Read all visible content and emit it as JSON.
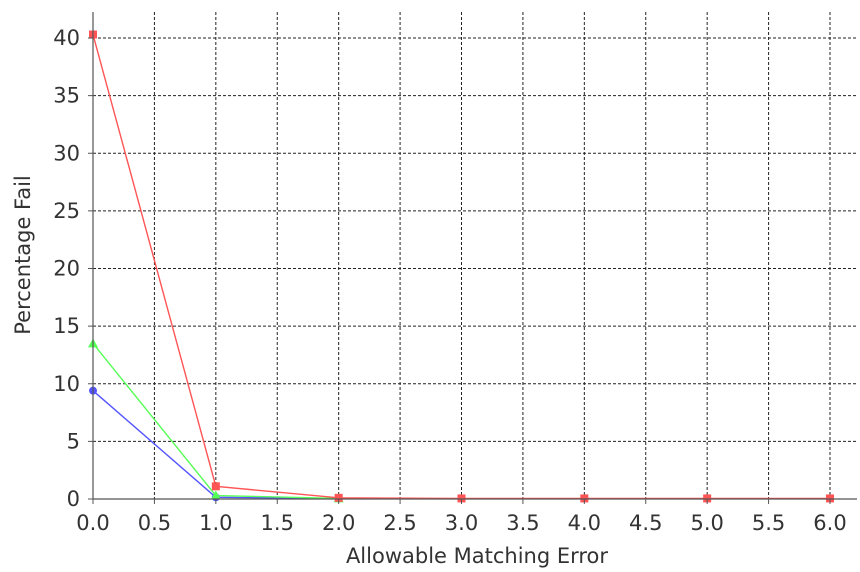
{
  "chart_data": {
    "type": "line",
    "title": "",
    "xlabel": "Allowable Matching Error",
    "ylabel": "Percentage Fail",
    "xlim": [
      0,
      6.15
    ],
    "ylim": [
      0,
      42
    ],
    "x_ticks": [
      0.0,
      0.5,
      1.0,
      1.5,
      2.0,
      2.5,
      3.0,
      3.5,
      4.0,
      4.5,
      5.0,
      5.5,
      6.0
    ],
    "x_tick_labels": [
      "0.0",
      "0.5",
      "1.0",
      "1.5",
      "2.0",
      "2.5",
      "3.0",
      "3.5",
      "4.0",
      "4.5",
      "5.0",
      "5.5",
      "6.0"
    ],
    "y_ticks": [
      0,
      5,
      10,
      15,
      20,
      25,
      30,
      35,
      40
    ],
    "y_tick_labels": [
      "0",
      "5",
      "10",
      "15",
      "20",
      "25",
      "30",
      "35",
      "40"
    ],
    "grid": true,
    "series": [
      {
        "color": "#ff5555",
        "marker": "square",
        "x": [
          0,
          1,
          2,
          3,
          4,
          5,
          6
        ],
        "y": [
          40.3,
          1.1,
          0.1,
          0.05,
          0.05,
          0.05,
          0.05
        ]
      },
      {
        "color": "#55ff55",
        "marker": "triangle",
        "x": [
          0,
          1,
          2
        ],
        "y": [
          13.5,
          0.3,
          0.05
        ]
      },
      {
        "color": "#5555ff",
        "marker": "circle",
        "x": [
          0,
          1,
          2
        ],
        "y": [
          9.4,
          0.15,
          0.05
        ]
      }
    ]
  }
}
